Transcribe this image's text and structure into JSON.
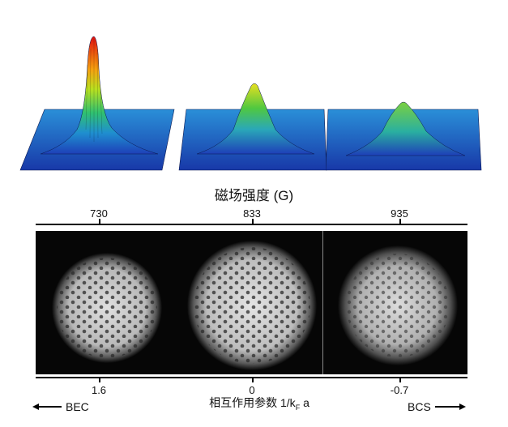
{
  "top_axis": {
    "title": "磁场强度 (G)",
    "ticks": [
      "730",
      "833",
      "935"
    ]
  },
  "bottom_axis": {
    "title_main": "相互作用参数",
    "title_formula_pre": "1/k",
    "title_formula_sub": "F",
    "title_formula_post": " a",
    "ticks": [
      "1.6",
      "0",
      "-0.7"
    ]
  },
  "regimes": {
    "left": "BEC",
    "right": "BCS"
  },
  "colors": {
    "peak": "#e01010",
    "mid": "#f0e020",
    "base": "#2050d0",
    "panel_bg": "#060606"
  }
}
